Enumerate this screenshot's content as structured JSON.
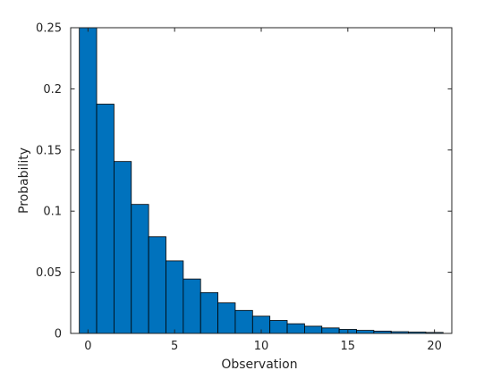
{
  "chart_data": {
    "type": "bar",
    "subtype": "histogram",
    "xlabel": "Observation",
    "ylabel": "Probability",
    "xlim": [
      -1,
      21
    ],
    "ylim": [
      0,
      0.25
    ],
    "x_ticks": [
      0,
      5,
      10,
      15,
      20
    ],
    "y_ticks": [
      0,
      0.05,
      0.1,
      0.15,
      0.2,
      0.25
    ],
    "x_tick_labels": [
      "0",
      "5",
      "10",
      "15",
      "20"
    ],
    "y_tick_labels": [
      "0",
      "0.05",
      "0.1",
      "0.15",
      "0.2",
      "0.25"
    ],
    "bar_color": "#0072BD",
    "edge_color": "#000000",
    "grid": false,
    "box": true,
    "bin_width": 1,
    "categories": [
      0,
      1,
      2,
      3,
      4,
      5,
      6,
      7,
      8,
      9,
      10,
      11,
      12,
      13,
      14,
      15,
      16,
      17,
      18,
      19,
      20
    ],
    "values": [
      0.25,
      0.1875,
      0.1406,
      0.1055,
      0.0791,
      0.0593,
      0.0445,
      0.0334,
      0.025,
      0.0188,
      0.0141,
      0.0106,
      0.0079,
      0.0059,
      0.0045,
      0.0033,
      0.0025,
      0.0019,
      0.0014,
      0.0011,
      0.0008
    ],
    "values_note_clipped_top": true
  }
}
